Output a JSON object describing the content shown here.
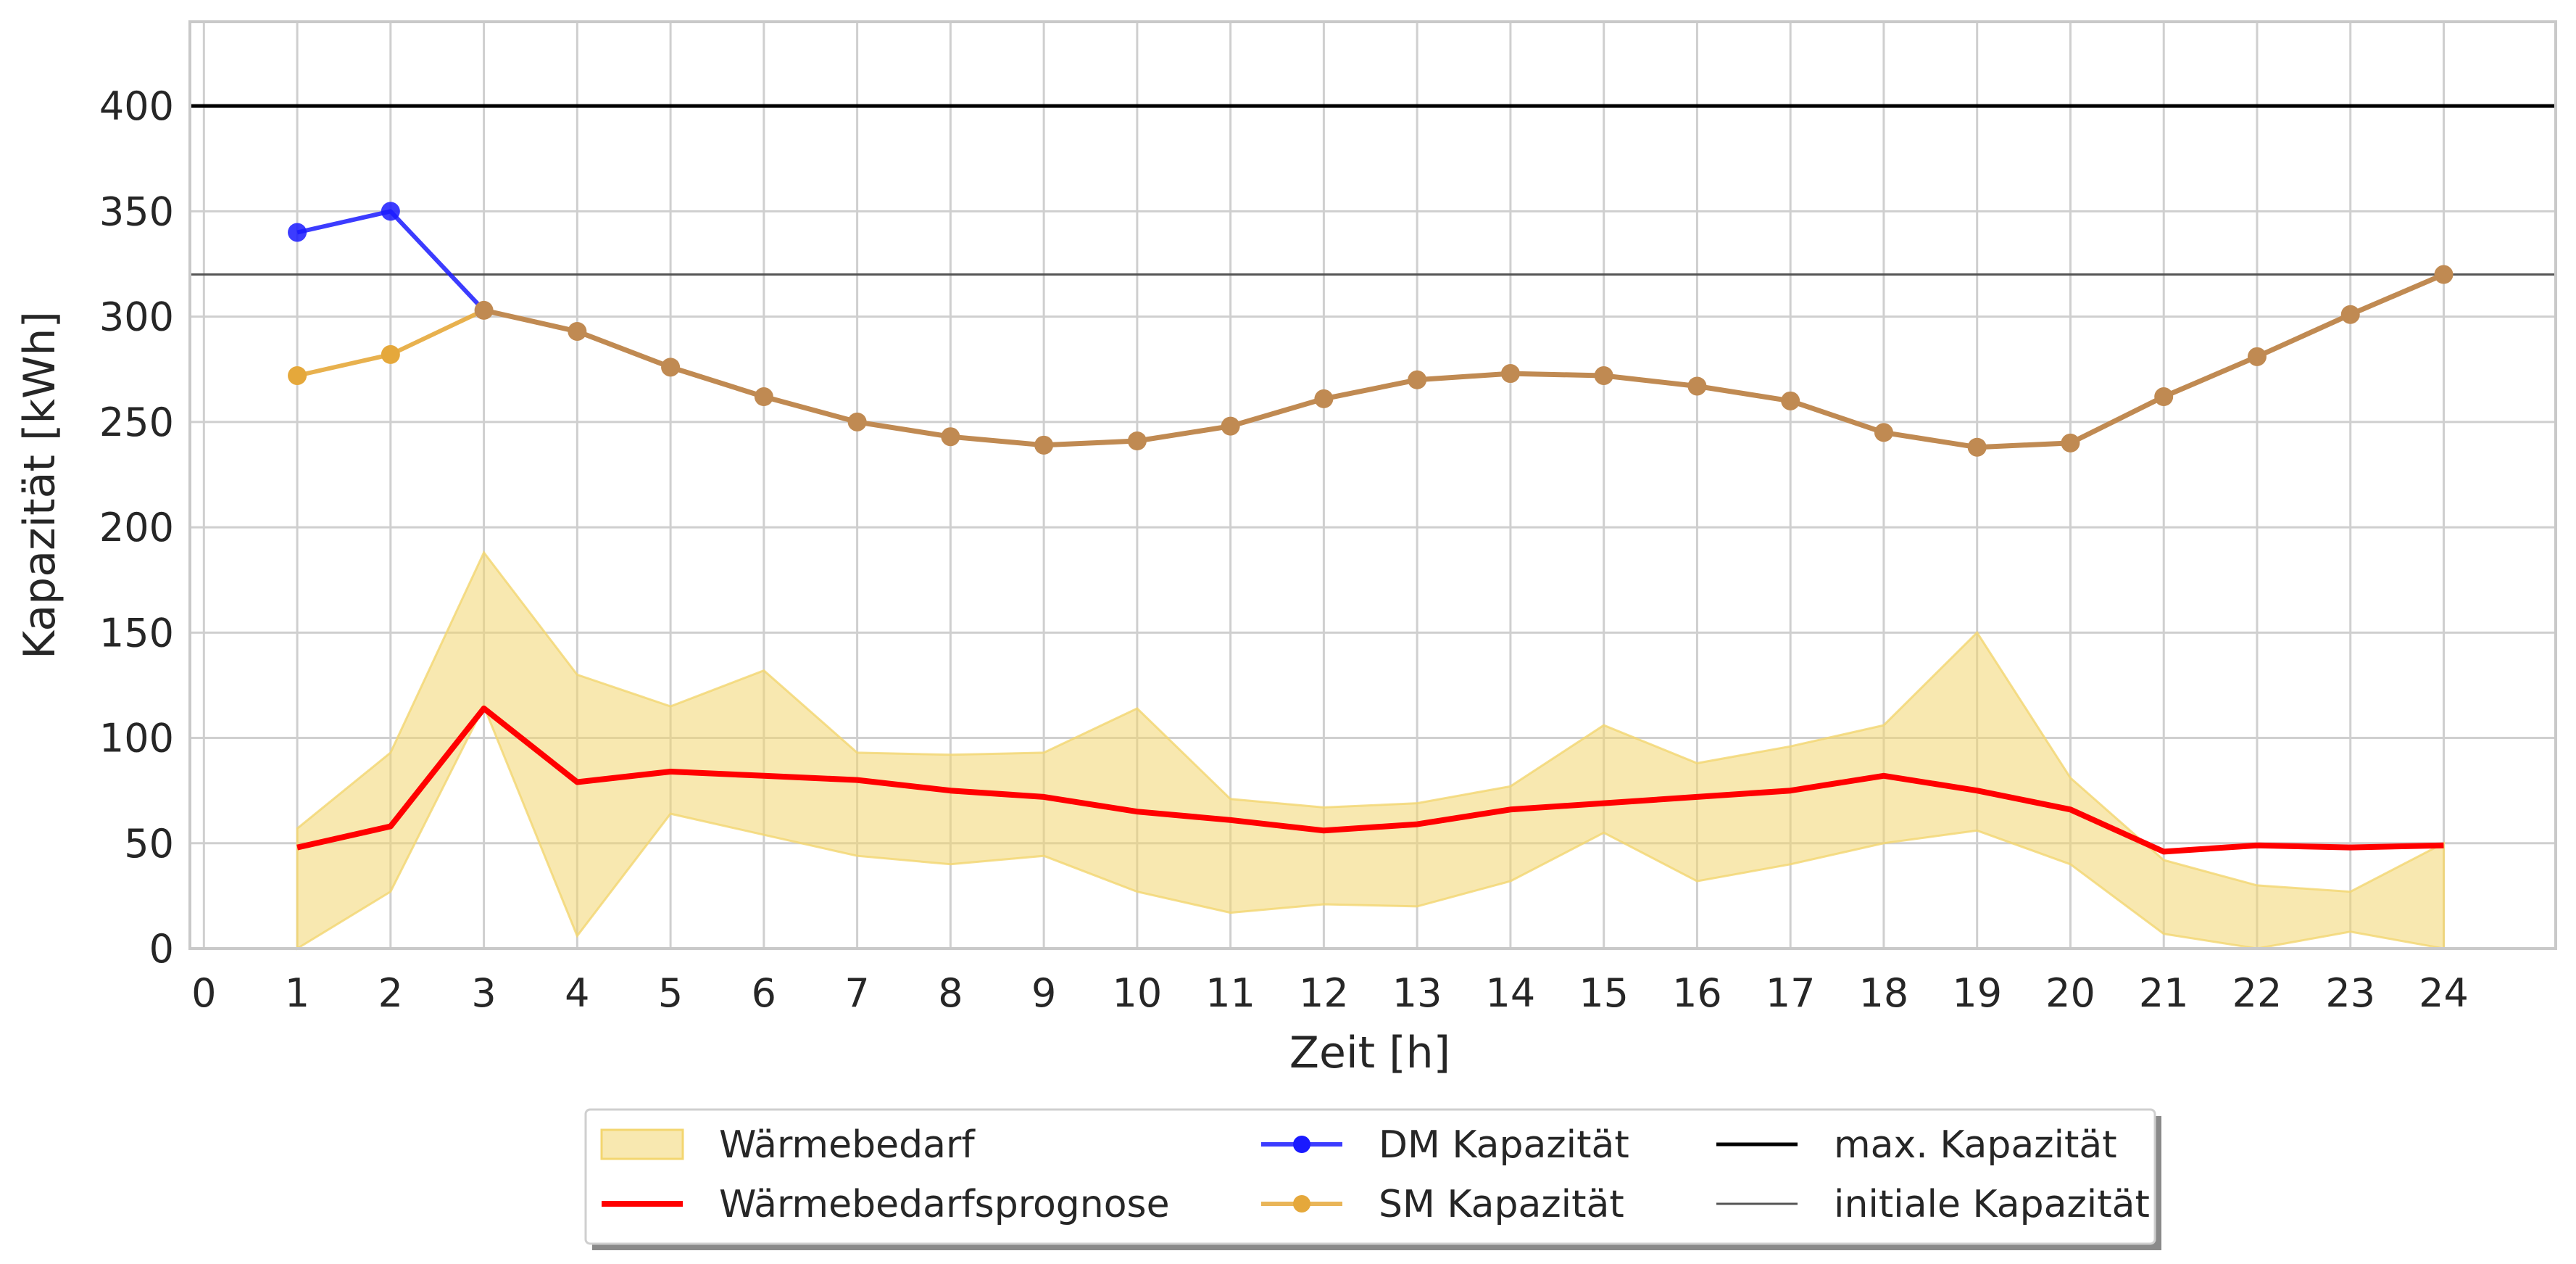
{
  "chart_data": {
    "type": "line",
    "xlabel": "Zeit [h]",
    "ylabel": "Kapazität [kWh]",
    "xlim": [
      -0.15,
      25.2
    ],
    "ylim": [
      0,
      440
    ],
    "x_ticks": [
      "0",
      "1",
      "2",
      "3",
      "4",
      "5",
      "6",
      "7",
      "8",
      "9",
      "10",
      "11",
      "12",
      "13",
      "14",
      "15",
      "16",
      "17",
      "18",
      "19",
      "20",
      "21",
      "22",
      "23",
      "24"
    ],
    "y_ticks": [
      "0",
      "50",
      "100",
      "150",
      "200",
      "250",
      "300",
      "350",
      "400"
    ],
    "grid": true,
    "legend_position": "bottom-center",
    "hlines": [
      {
        "name": "max. Kapazität",
        "y": 400,
        "color": "#000000"
      },
      {
        "name": "initiale Kapazität",
        "y": 320,
        "color": "#555555"
      }
    ],
    "band": {
      "name": "Wärmebedarf",
      "color": "#f3d670",
      "x": [
        1,
        2,
        3,
        4,
        5,
        6,
        7,
        8,
        9,
        10,
        11,
        12,
        13,
        14,
        15,
        16,
        17,
        18,
        19,
        20,
        21,
        22,
        23,
        24
      ],
      "upper": [
        57,
        93,
        188,
        130,
        115,
        132,
        93,
        92,
        93,
        114,
        71,
        67,
        69,
        77,
        106,
        88,
        96,
        106,
        150,
        81,
        42,
        30,
        27,
        50
      ],
      "lower": [
        -2,
        27,
        115,
        6,
        64,
        54,
        44,
        40,
        44,
        27,
        17,
        21,
        20,
        32,
        55,
        32,
        40,
        50,
        56,
        40,
        7,
        -3,
        8,
        -3
      ]
    },
    "series": [
      {
        "name": "Wärmebedarfsprognose",
        "color": "#ff0000",
        "markers": false,
        "x": [
          1,
          2,
          3,
          4,
          5,
          6,
          7,
          8,
          9,
          10,
          11,
          12,
          13,
          14,
          15,
          16,
          17,
          18,
          19,
          20,
          21,
          22,
          23,
          24
        ],
        "values": [
          48,
          58,
          114,
          79,
          84,
          82,
          80,
          75,
          72,
          65,
          61,
          56,
          59,
          66,
          69,
          72,
          75,
          82,
          75,
          66,
          46,
          49,
          48,
          49
        ]
      },
      {
        "name": "DM Kapazität",
        "color": "#1a1aff",
        "markers": true,
        "x": [
          1,
          2,
          3,
          4,
          5,
          6,
          7,
          8,
          9,
          10,
          11,
          12,
          13,
          14,
          15,
          16,
          17,
          18,
          19,
          20,
          21,
          22,
          23,
          24
        ],
        "values": [
          340,
          350,
          303,
          293,
          276,
          262,
          250,
          243,
          239,
          241,
          248,
          261,
          270,
          273,
          272,
          267,
          260,
          245,
          238,
          240,
          262,
          281,
          301,
          320
        ]
      },
      {
        "name": "SM Kapazität",
        "color": "#e5a83b",
        "markers": true,
        "x": [
          1,
          2,
          3,
          4,
          5,
          6,
          7,
          8,
          9,
          10,
          11,
          12,
          13,
          14,
          15,
          16,
          17,
          18,
          19,
          20,
          21,
          22,
          23,
          24
        ],
        "values": [
          272,
          282,
          303,
          293,
          276,
          262,
          250,
          243,
          239,
          241,
          248,
          261,
          270,
          273,
          272,
          267,
          260,
          245,
          238,
          240,
          262,
          281,
          301,
          320
        ]
      }
    ],
    "overlap_color": "#c08a52"
  }
}
